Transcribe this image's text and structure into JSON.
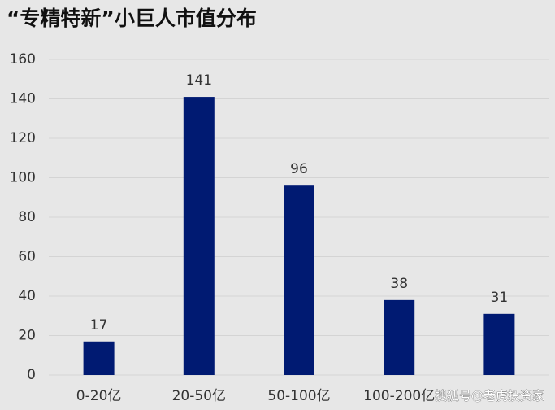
{
  "chart_data": {
    "type": "bar",
    "title": "“专精特新”小巨人市值分布",
    "categories": [
      "0-20亿",
      "20-50亿",
      "50-100亿",
      "100-200亿",
      null
    ],
    "values": [
      17,
      141,
      96,
      38,
      31
    ],
    "color": "#001a72",
    "ylim": [
      0,
      160
    ],
    "yticks": [
      0,
      20,
      40,
      60,
      80,
      100,
      120,
      140,
      160
    ],
    "grid": true,
    "watermark": "搜狐号@老虎投资家"
  }
}
